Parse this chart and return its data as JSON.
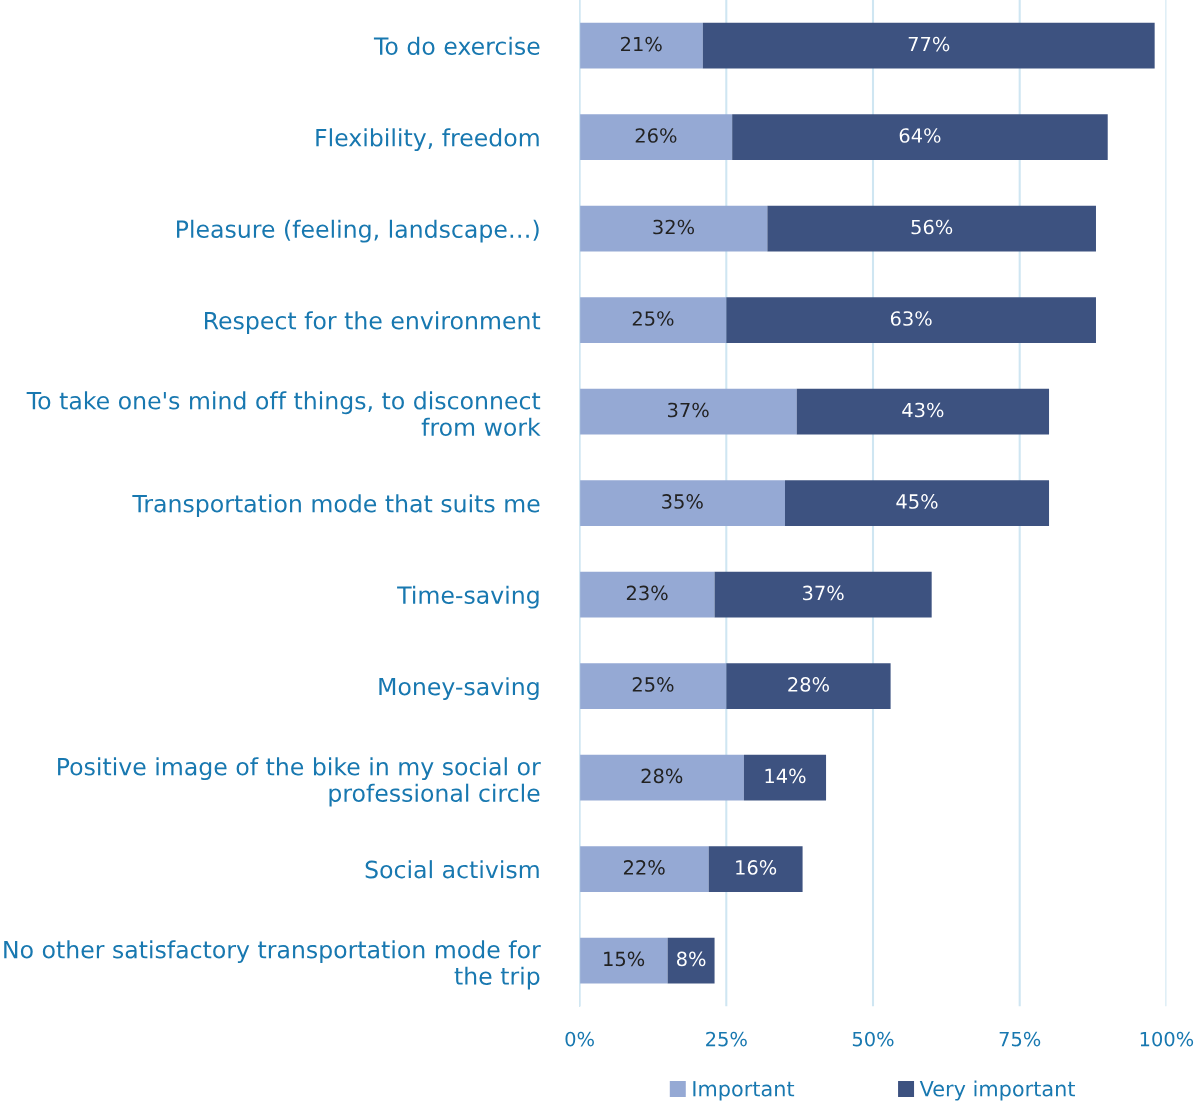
{
  "chart_data": {
    "type": "bar",
    "orientation": "horizontal",
    "stacked": true,
    "categories": [
      "To do exercise",
      "Flexibility, freedom",
      "Pleasure (feeling, landscape…)",
      "Respect for the environment",
      "To take one's mind off things, to disconnect\nfrom work",
      "Transportation mode that suits me",
      "Time-saving",
      "Money-saving",
      "Positive image of the bike in my social or\nprofessional circle",
      "Social activism",
      "No other satisfactory transportation mode for\nthe trip"
    ],
    "series": [
      {
        "name": "Important",
        "color": "#95a9d4",
        "values": [
          21,
          26,
          32,
          25,
          37,
          35,
          23,
          25,
          28,
          22,
          15
        ],
        "value_labels": [
          "21%",
          "26%",
          "32%",
          "25%",
          "37%",
          "35%",
          "23%",
          "25%",
          "28%",
          "22%",
          "15%"
        ]
      },
      {
        "name": "Very important",
        "color": "#3d5280",
        "values": [
          77,
          64,
          56,
          63,
          43,
          45,
          37,
          28,
          14,
          16,
          8
        ],
        "value_labels": [
          "77%",
          "64%",
          "56%",
          "63%",
          "43%",
          "45%",
          "37%",
          "28%",
          "14%",
          "16%",
          "8%"
        ]
      }
    ],
    "xlim": [
      0,
      100
    ],
    "xticks": [
      {
        "value": 0,
        "label": "0%"
      },
      {
        "value": 25,
        "label": "25%"
      },
      {
        "value": 50,
        "label": "50%"
      },
      {
        "value": 75,
        "label": "75%"
      },
      {
        "value": 100,
        "label": "100%"
      }
    ],
    "grid": "x",
    "legend": "bottom"
  }
}
